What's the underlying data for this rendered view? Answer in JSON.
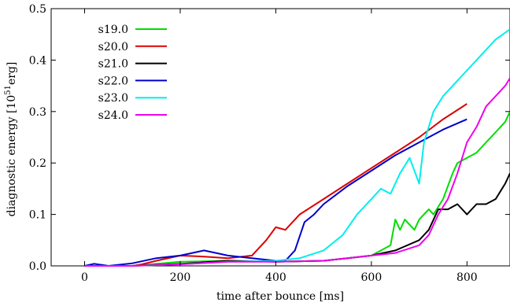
{
  "chart_data": {
    "type": "line",
    "xlabel": "time after bounce [ms]",
    "ylabel_main": "diagnostic energy [10",
    "ylabel_sup": "51",
    "ylabel_tail": "erg]",
    "xlim": [
      -70,
      890
    ],
    "ylim": [
      0,
      0.5
    ],
    "x_ticks": [
      0,
      200,
      400,
      600,
      800
    ],
    "y_ticks": [
      0.0,
      0.1,
      0.2,
      0.3,
      0.4,
      0.5
    ],
    "x_tick_labels": [
      "0",
      "200",
      "400",
      "600",
      "800"
    ],
    "y_tick_labels": [
      "0.0",
      "0.1",
      "0.2",
      "0.3",
      "0.4",
      "0.5"
    ],
    "legend_position": "top-left",
    "grid": false,
    "series": [
      {
        "name": "s19.0",
        "color": "#00dd00",
        "x": [
          0,
          100,
          150,
          200,
          300,
          400,
          500,
          550,
          600,
          620,
          640,
          650,
          660,
          670,
          690,
          700,
          720,
          730,
          750,
          770,
          780,
          800,
          820,
          840,
          860,
          880,
          890
        ],
        "y": [
          0,
          0,
          0.004,
          0.008,
          0.01,
          0.008,
          0.01,
          0.015,
          0.02,
          0.03,
          0.04,
          0.09,
          0.07,
          0.09,
          0.07,
          0.09,
          0.11,
          0.1,
          0.13,
          0.18,
          0.2,
          0.21,
          0.22,
          0.24,
          0.26,
          0.28,
          0.3
        ]
      },
      {
        "name": "s20.0",
        "color": "#dd0000",
        "x": [
          0,
          100,
          120,
          150,
          200,
          250,
          300,
          350,
          380,
          400,
          420,
          450,
          500,
          550,
          600,
          650,
          700,
          750,
          800
        ],
        "y": [
          0,
          0,
          0.003,
          0.01,
          0.02,
          0.018,
          0.015,
          0.02,
          0.05,
          0.075,
          0.07,
          0.1,
          0.13,
          0.16,
          0.19,
          0.22,
          0.25,
          0.285,
          0.315
        ]
      },
      {
        "name": "s21.0",
        "color": "#000000",
        "x": [
          0,
          100,
          200,
          300,
          400,
          500,
          550,
          600,
          650,
          700,
          720,
          740,
          760,
          780,
          800,
          820,
          840,
          860,
          880,
          890
        ],
        "y": [
          0,
          0,
          0.004,
          0.01,
          0.008,
          0.01,
          0.015,
          0.02,
          0.03,
          0.05,
          0.07,
          0.11,
          0.11,
          0.12,
          0.1,
          0.12,
          0.12,
          0.13,
          0.16,
          0.18
        ]
      },
      {
        "name": "s22.0",
        "color": "#0000cc",
        "x": [
          0,
          20,
          50,
          100,
          150,
          200,
          250,
          300,
          350,
          400,
          420,
          440,
          460,
          480,
          500,
          550,
          600,
          650,
          700,
          750,
          800
        ],
        "y": [
          0,
          0.004,
          0,
          0.005,
          0.015,
          0.02,
          0.03,
          0.02,
          0.015,
          0.01,
          0.01,
          0.03,
          0.085,
          0.1,
          0.12,
          0.155,
          0.185,
          0.215,
          0.24,
          0.265,
          0.285
        ]
      },
      {
        "name": "s23.0",
        "color": "#00eeee",
        "x": [
          0,
          100,
          200,
          300,
          400,
          450,
          500,
          540,
          570,
          600,
          620,
          640,
          660,
          680,
          700,
          710,
          730,
          750,
          780,
          800,
          820,
          840,
          860,
          890
        ],
        "y": [
          0,
          0,
          0.003,
          0.008,
          0.01,
          0.015,
          0.03,
          0.06,
          0.1,
          0.13,
          0.15,
          0.14,
          0.18,
          0.21,
          0.16,
          0.24,
          0.3,
          0.33,
          0.36,
          0.38,
          0.4,
          0.42,
          0.44,
          0.46
        ]
      },
      {
        "name": "s24.0",
        "color": "#ee00ee",
        "x": [
          0,
          100,
          200,
          300,
          400,
          500,
          550,
          600,
          650,
          700,
          720,
          740,
          760,
          780,
          800,
          820,
          840,
          860,
          880,
          890
        ],
        "y": [
          0,
          0,
          0.003,
          0.008,
          0.008,
          0.01,
          0.015,
          0.02,
          0.025,
          0.04,
          0.06,
          0.1,
          0.13,
          0.18,
          0.24,
          0.27,
          0.31,
          0.33,
          0.35,
          0.365
        ]
      }
    ]
  }
}
